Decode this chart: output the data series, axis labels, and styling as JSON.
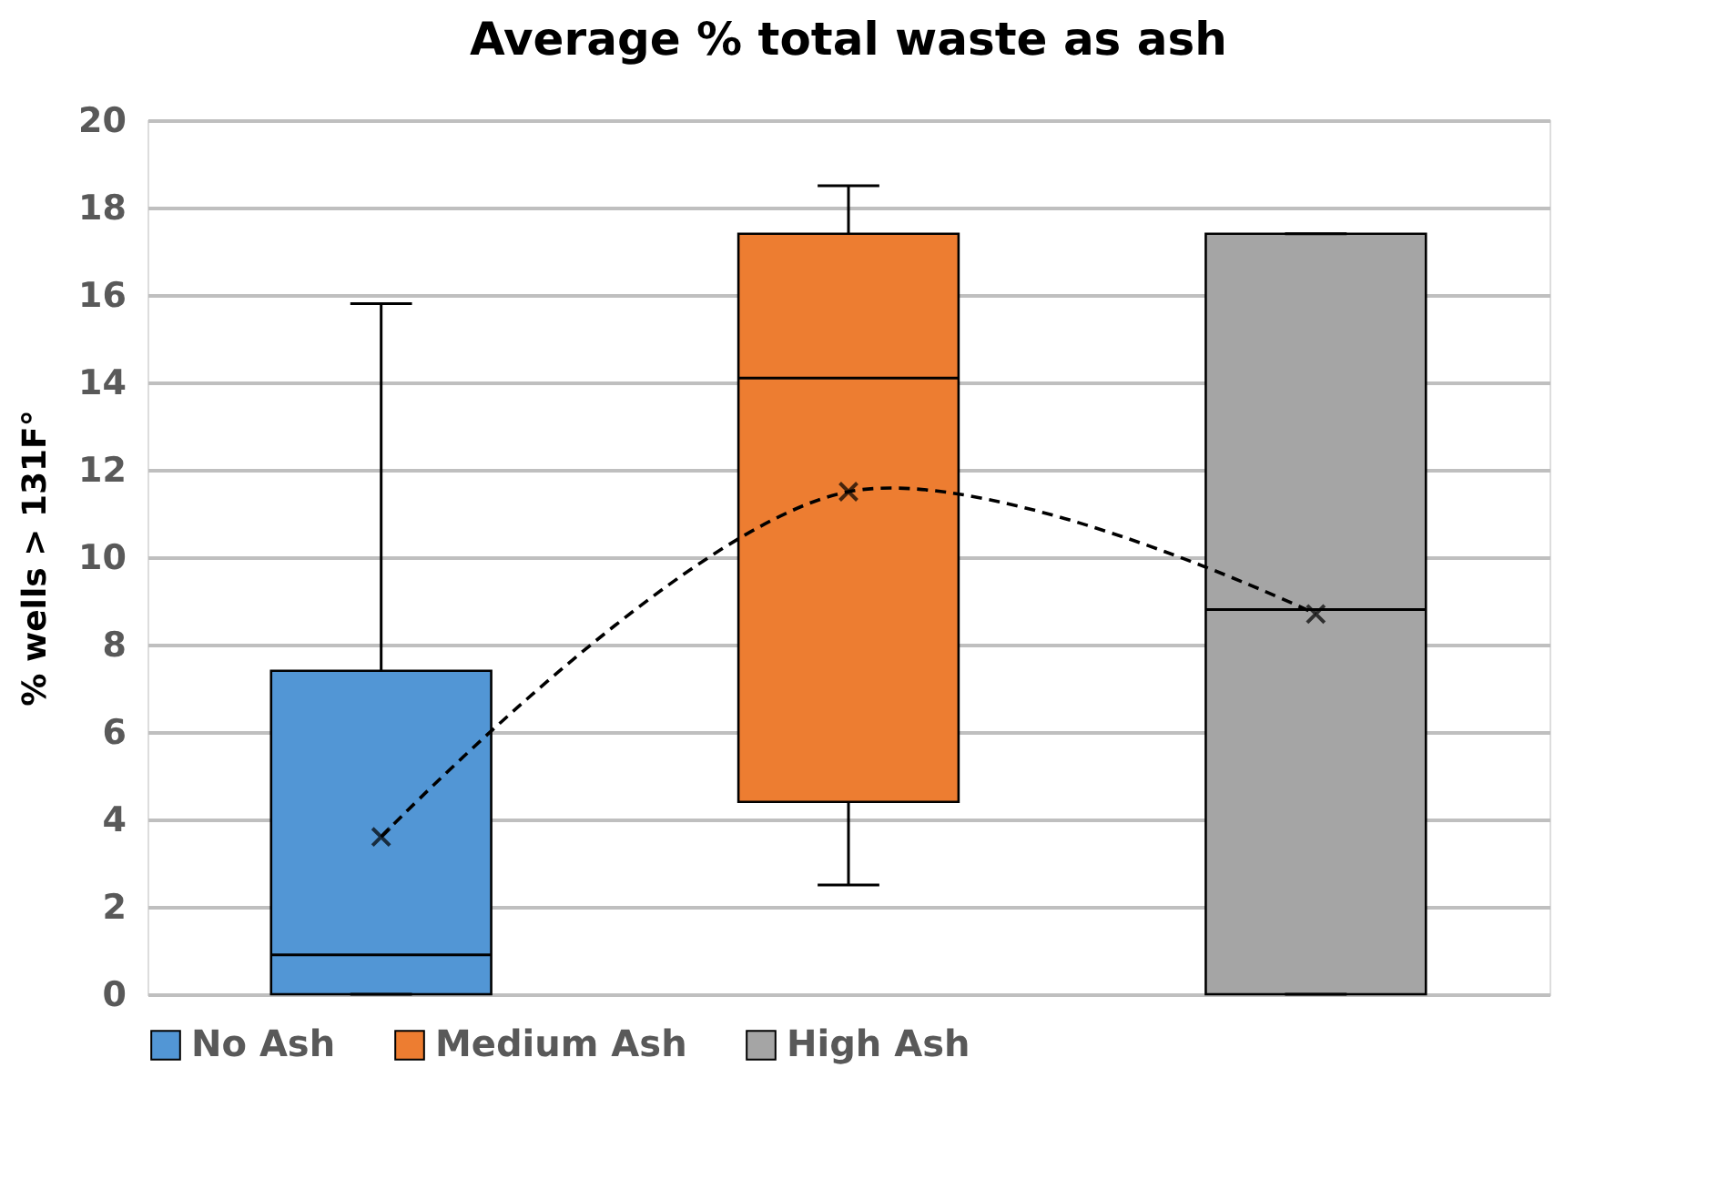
{
  "chart_data": {
    "type": "box",
    "title": "Average % total waste as ash",
    "ylabel": "% wells > 131F°",
    "categories": [
      null,
      null,
      null
    ],
    "series": [
      {
        "name": "No Ash",
        "color": "#5296d5",
        "boxes": [
          {
            "low": 0,
            "q1": 0,
            "median": 0.9,
            "q3": 7.4,
            "high": 15.8,
            "mean": 3.6
          },
          null,
          null
        ]
      },
      {
        "name": "Medium Ash",
        "color": "#ed7d31",
        "boxes": [
          null,
          {
            "low": 2.5,
            "q1": 4.4,
            "median": 14.1,
            "q3": 17.4,
            "high": 18.5,
            "mean": 11.5
          },
          null
        ]
      },
      {
        "name": "High Ash",
        "color": "#a5a5a5",
        "boxes": [
          null,
          null,
          {
            "low": 0,
            "q1": 0,
            "median": 8.8,
            "q3": 17.4,
            "high": 17.4,
            "mean": 8.7
          }
        ]
      },
      {
        "type": "line",
        "color": "#000000",
        "line_style": "dashed",
        "marker": "none",
        "values": [
          3.6,
          11.5,
          8.7
        ]
      }
    ],
    "ylim": [
      0,
      20
    ],
    "yticks": [
      0,
      2,
      4,
      6,
      8,
      10,
      12,
      14,
      16,
      18,
      20
    ],
    "grid": "y",
    "legend": "bottom",
    "marker": "cross"
  }
}
